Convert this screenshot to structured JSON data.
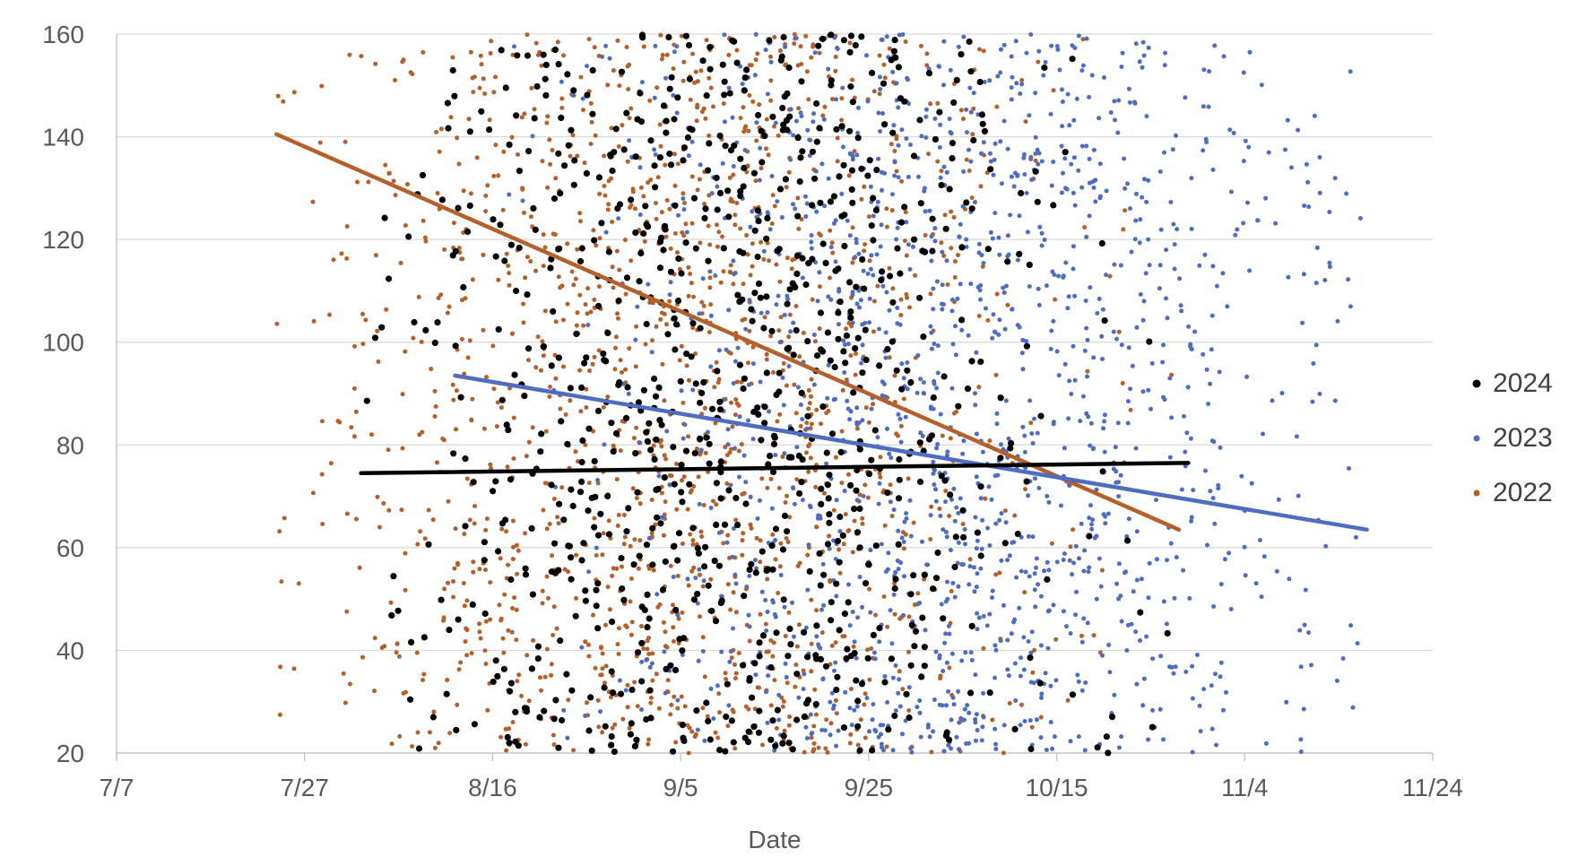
{
  "chart_data": {
    "type": "scatter",
    "title": "",
    "xlabel": "Date",
    "ylabel": "",
    "x_axis": {
      "type": "date",
      "min": "7/7",
      "max": "11/24",
      "ticks": [
        "7/7",
        "7/27",
        "8/16",
        "9/5",
        "9/25",
        "10/15",
        "11/4",
        "11/24"
      ]
    },
    "y_axis": {
      "min": 20,
      "max": 160,
      "ticks": [
        20,
        40,
        60,
        80,
        100,
        120,
        140,
        160
      ]
    },
    "grid": "horizontal",
    "legend_position": "right",
    "series": [
      {
        "name": "2024",
        "color": "#000000",
        "marker": "large-dot",
        "approx_point_count": 900,
        "x_range": [
          "8/2",
          "10/28"
        ],
        "y_range": [
          20,
          160
        ],
        "trendline": {
          "from": {
            "x": "8/2",
            "y": 74.5
          },
          "to": {
            "x": "10/29",
            "y": 76.5
          }
        }
      },
      {
        "name": "2023",
        "color": "#4F6DC0",
        "marker": "small-dot",
        "approx_point_count": 1500,
        "x_range": [
          "8/12",
          "11/17"
        ],
        "y_range": [
          20,
          160
        ],
        "trendline": {
          "from": {
            "x": "8/12",
            "y": 93.5
          },
          "to": {
            "x": "11/17",
            "y": 63.5
          }
        }
      },
      {
        "name": "2022",
        "color": "#B5602A",
        "marker": "small-dot",
        "approx_point_count": 1500,
        "x_range": [
          "7/24",
          "10/28"
        ],
        "y_range": [
          20,
          160
        ],
        "trendline": {
          "from": {
            "x": "7/24",
            "y": 140.5
          },
          "to": {
            "x": "10/28",
            "y": 63.5
          }
        }
      }
    ],
    "legend": [
      {
        "label": "2024",
        "color": "#000000"
      },
      {
        "label": "2023",
        "color": "#4F6DC0"
      },
      {
        "label": "2022",
        "color": "#B5602A"
      }
    ]
  }
}
